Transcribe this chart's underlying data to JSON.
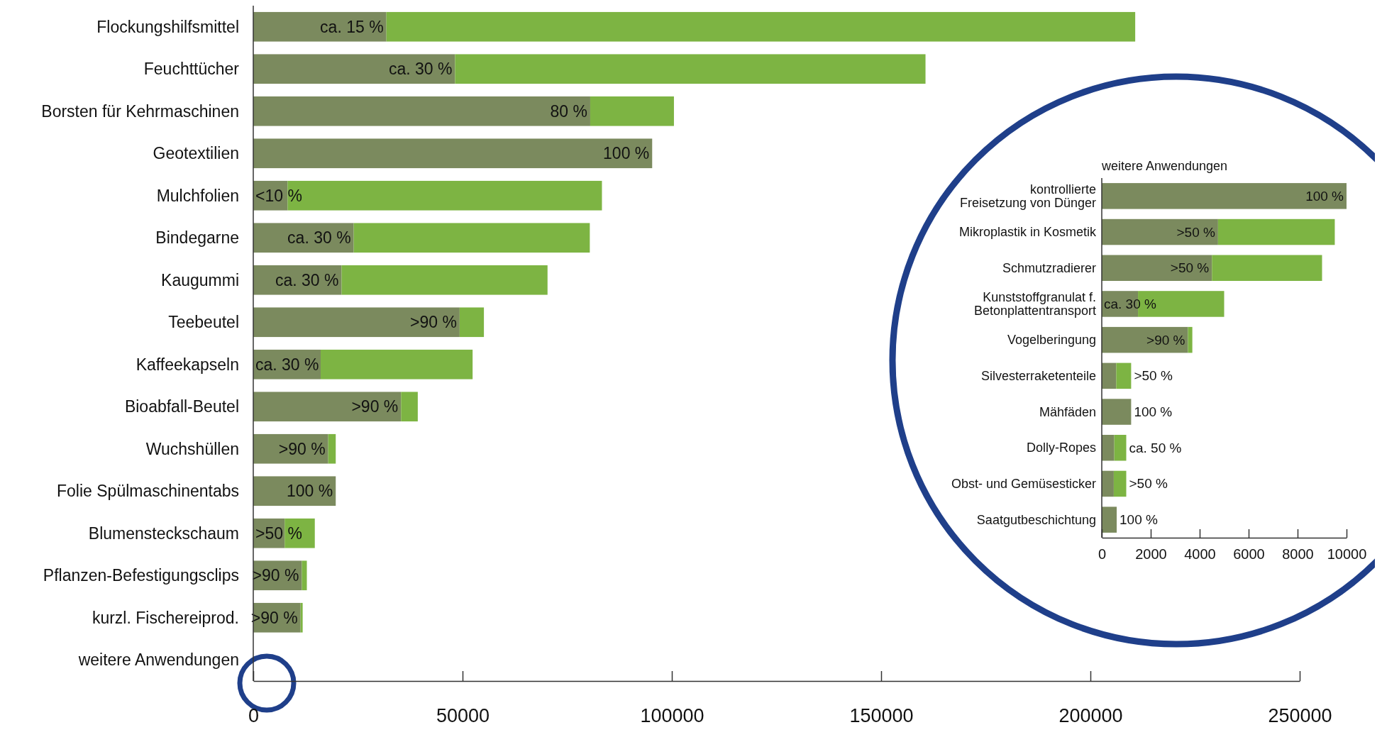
{
  "chart_data": [
    {
      "type": "bar",
      "orientation": "horizontal",
      "stacked": true,
      "categories": [
        "Flockungshilfsmittel",
        "Feuchttücher",
        "Borsten für Kehrmaschinen",
        "Geotextilien",
        "Mulchfolien",
        "Bindegarne",
        "Kaugummi",
        "Teebeutel",
        "Kaffeekapseln",
        "Bioabfall-Beutel",
        "Wuchshüllen",
        "Folie Spülmaschinentabs",
        "Blumensteckschaum",
        "Pflanzen-Befestigungsclips",
        "kurzl. Fischereiprod.",
        "weitere Anwendungen"
      ],
      "series": [
        {
          "color": "#7b8a5e",
          "values": [
            31800,
            48200,
            80500,
            95300,
            8200,
            24000,
            21100,
            49300,
            16100,
            35300,
            17900,
            19700,
            7500,
            11600,
            11300,
            null
          ]
        },
        {
          "color": "#7db443",
          "values": [
            178900,
            112400,
            20000,
            0,
            75100,
            56400,
            49200,
            5800,
            36300,
            4000,
            1800,
            0,
            7200,
            1200,
            500,
            null
          ]
        }
      ],
      "annotations": [
        {
          "text": "ca. 15 %",
          "x": 31800,
          "y": "Flockungshilfsmittel"
        },
        {
          "text": "ca. 30 %",
          "x": 48200,
          "y": "Feuchttücher"
        },
        {
          "text": "80 %",
          "x": 80500,
          "y": "Borsten für Kehrmaschinen"
        },
        {
          "text": "100 %",
          "x": 95300,
          "y": "Geotextilien"
        },
        {
          "text": "<10 %",
          "x": 8200,
          "y": "Mulchfolien"
        },
        {
          "text": "ca. 30 %",
          "x": 24000,
          "y": "Bindegarne"
        },
        {
          "text": "ca. 30 %",
          "x": 21100,
          "y": "Kaugummi"
        },
        {
          "text": ">90 %",
          "x": 49300,
          "y": "Teebeutel"
        },
        {
          "text": "ca. 30 %",
          "x": 16100,
          "y": "Kaffeekapseln"
        },
        {
          "text": ">90 %",
          "x": 35300,
          "y": "Bioabfall-Beutel"
        },
        {
          "text": ">90 %",
          "x": 17900,
          "y": "Wuchshüllen"
        },
        {
          "text": "100 %",
          "x": 19700,
          "y": "Folie Spülmaschinentabs"
        },
        {
          "text": ">50 %",
          "x": 7500,
          "y": "Blumensteckschaum"
        },
        {
          "text": ">90 %",
          "x": 11600,
          "y": "Pflanzen-Befestigungsclips"
        },
        {
          "text": ">90 %",
          "x": 11300,
          "y": "kurzl. Fischereiprod."
        }
      ],
      "xlim": [
        0,
        250000
      ],
      "xticks": [
        0,
        50000,
        100000,
        150000,
        200000,
        250000
      ]
    },
    {
      "type": "bar",
      "orientation": "horizontal",
      "stacked": true,
      "title": "weitere Anwendungen",
      "categories": [
        "kontrollierte\nFreisetzung von Dünger",
        "Mikroplastik in Kosmetik",
        "Schmutzradierer",
        "Kunststoffgranulat f.\nBetonplattentransport",
        "Vogelberingung",
        "Silvesterraketenteile",
        "Mähfäden",
        "Dolly-Ropes",
        "Obst- und Gemüsesticker",
        "Saatgutbeschichtung"
      ],
      "series": [
        {
          "color": "#7b8a5e",
          "values": [
            10000,
            4750,
            4500,
            1480,
            3520,
            590,
            1200,
            510,
            490,
            610
          ]
        },
        {
          "color": "#7db443",
          "values": [
            0,
            4770,
            4500,
            3520,
            180,
            610,
            0,
            490,
            510,
            0
          ]
        }
      ],
      "annotations": [
        {
          "text": "100 %",
          "x": 10000,
          "y": "kontrollierte\nFreisetzung von Dünger"
        },
        {
          "text": ">50 %",
          "x": 4750,
          "y": "Mikroplastik in Kosmetik"
        },
        {
          "text": ">50 %",
          "x": 4500,
          "y": "Schmutzradierer"
        },
        {
          "text": "ca. 30 %",
          "x": 1480,
          "y": "Kunststoffgranulat f.\nBetonplattentransport"
        },
        {
          "text": ">90 %",
          "x": 3520,
          "y": "Vogelberingung"
        },
        {
          "text": ">50 %",
          "x": 1200,
          "y": "Silvesterraketenteile"
        },
        {
          "text": "100 %",
          "x": 1200,
          "y": "Mähfäden"
        },
        {
          "text": "ca. 50 %",
          "x": 1000,
          "y": "Dolly-Ropes"
        },
        {
          "text": ">50 %",
          "x": 1000,
          "y": "Obst- und Gemüsesticker"
        },
        {
          "text": "100 %",
          "x": 610,
          "y": "Saatgutbeschichtung"
        }
      ],
      "xlim": [
        0,
        10000
      ],
      "xticks": [
        0,
        2000,
        4000,
        6000,
        8000,
        10000
      ]
    }
  ]
}
